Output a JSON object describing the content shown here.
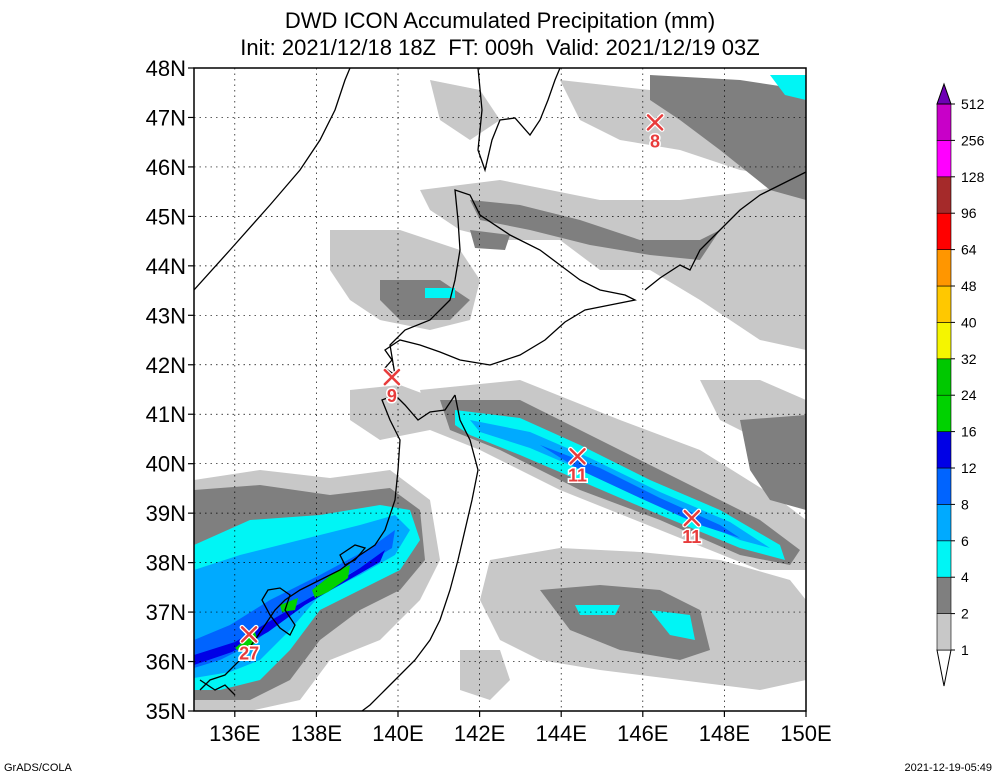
{
  "title": {
    "line1": "DWD ICON Accumulated Precipitation (mm)",
    "line2": "Init: 2021/12/18 18Z  FT: 009h  Valid: 2021/12/19 03Z"
  },
  "axes": {
    "lon_range": [
      135,
      150
    ],
    "lat_range": [
      35,
      48
    ],
    "x_ticks": [
      "136E",
      "138E",
      "140E",
      "142E",
      "144E",
      "146E",
      "148E",
      "150E"
    ],
    "x_tick_values": [
      136,
      138,
      140,
      142,
      144,
      146,
      148,
      150
    ],
    "y_ticks": [
      "35N",
      "36N",
      "37N",
      "38N",
      "39N",
      "40N",
      "41N",
      "42N",
      "43N",
      "44N",
      "45N",
      "46N",
      "47N",
      "48N"
    ],
    "y_tick_values": [
      35,
      36,
      37,
      38,
      39,
      40,
      41,
      42,
      43,
      44,
      45,
      46,
      47,
      48
    ],
    "grid": "dotted"
  },
  "colorbar": {
    "levels": [
      "1",
      "2",
      "4",
      "6",
      "8",
      "12",
      "16",
      "24",
      "32",
      "40",
      "48",
      "64",
      "96",
      "128",
      "256",
      "512"
    ],
    "colors": [
      "#c8c8c8",
      "#7f7f7f",
      "#00f5f5",
      "#00aaff",
      "#0064ff",
      "#0000e6",
      "#00d200",
      "#00c800",
      "#f5f500",
      "#ffc800",
      "#ff9600",
      "#ff0000",
      "#a52a2a",
      "#ff00ff",
      "#c800c8",
      "#8c00c8",
      "#6e00b4"
    ]
  },
  "markers": [
    {
      "lon": 146.3,
      "lat": 46.9,
      "label": "8"
    },
    {
      "lon": 139.85,
      "lat": 41.75,
      "label": "9"
    },
    {
      "lon": 144.4,
      "lat": 40.15,
      "label": "11"
    },
    {
      "lon": 147.2,
      "lat": 38.9,
      "label": "11"
    },
    {
      "lon": 136.35,
      "lat": 36.55,
      "label": "27"
    }
  ],
  "footer": {
    "left": "GrADS/COLA",
    "right": "2021-12-19-05:49"
  }
}
